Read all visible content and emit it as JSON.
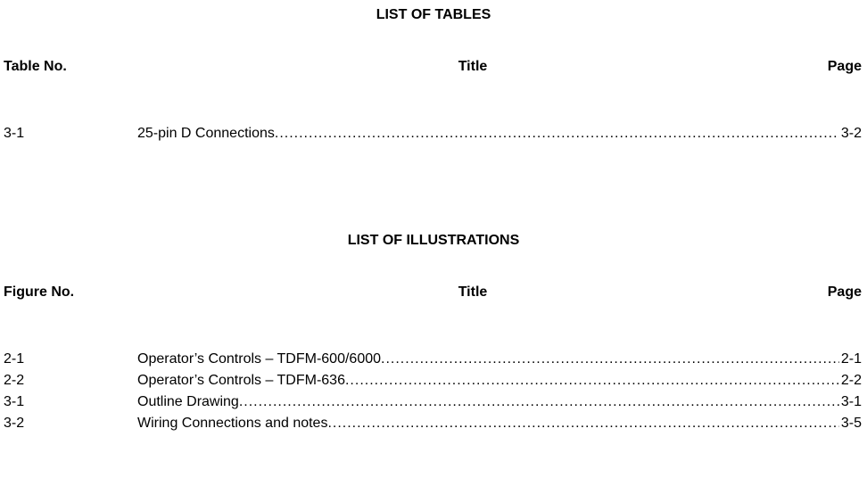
{
  "tables_section": {
    "heading": "LIST OF TABLES",
    "col_no": "Table No.",
    "col_title": "Title",
    "col_page": "Page",
    "entries": [
      {
        "no": "3-1",
        "title": "25-pin D Connections",
        "page": "3-2"
      }
    ]
  },
  "illus_section": {
    "heading": "LIST OF ILLUSTRATIONS",
    "col_no": "Figure No.",
    "col_title": "Title",
    "col_page": "Page",
    "entries": [
      {
        "no": "2-1",
        "title": "Operator’s Controls – TDFM-600/6000",
        "page": "2-1"
      },
      {
        "no": "2-2",
        "title": "Operator’s Controls – TDFM-636",
        "page": "2-2"
      },
      {
        "no": "3-1",
        "title": "Outline Drawing",
        "page": "3-1"
      },
      {
        "no": "3-2",
        "title": "Wiring Connections and notes",
        "page": "3-5"
      }
    ]
  }
}
